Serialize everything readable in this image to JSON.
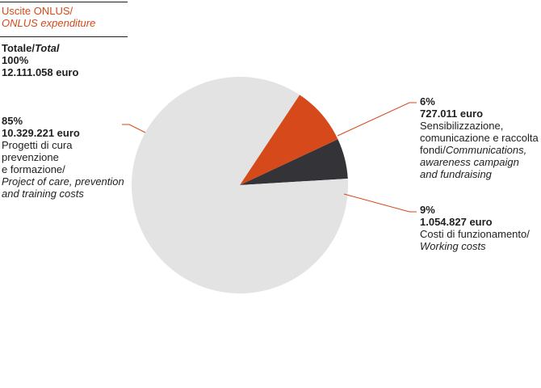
{
  "header": {
    "title_it": "Uscite ONLUS/",
    "title_en": "ONLUS expenditure"
  },
  "total": {
    "label_it": "Totale/",
    "label_en": "Total",
    "percent": "100%",
    "amount": "12.111.058 euro"
  },
  "colors": {
    "accent": "#d5491a",
    "care": "#e3e3e3",
    "awareness": "#333338",
    "working": "#d5491a",
    "leader": "#d5491a"
  },
  "chart_data": {
    "type": "pie",
    "title": "Uscite ONLUS/ ONLUS expenditure",
    "unit": "euro",
    "total": 12111058,
    "slices": [
      {
        "key": "care",
        "value": 10329221,
        "percent": 85,
        "percent_label": "85%",
        "amount_label": "10.329.221 euro",
        "label_it_lines": [
          "Progetti di cura",
          "prevenzione",
          "e formazione/"
        ],
        "label_en_lines": [
          "Project of care, prevention",
          "and training costs"
        ],
        "color": "#e3e3e3"
      },
      {
        "key": "awareness",
        "value": 727011,
        "percent": 6,
        "percent_label": "6%",
        "amount_label": "727.011 euro",
        "label_it_lines": [
          "Sensibilizzazione,",
          "comunicazione e raccolta",
          "fondi/"
        ],
        "label_en_lines": [
          "Communications,",
          "awareness campaign",
          "and fundraising"
        ],
        "color": "#333338"
      },
      {
        "key": "working",
        "value": 1054827,
        "percent": 9,
        "percent_label": "9%",
        "amount_label": "1.054.827 euro",
        "label_it_lines": [
          "Costi di funzionamento/"
        ],
        "label_en_lines": [
          "Working costs"
        ],
        "color": "#d5491a"
      }
    ]
  }
}
